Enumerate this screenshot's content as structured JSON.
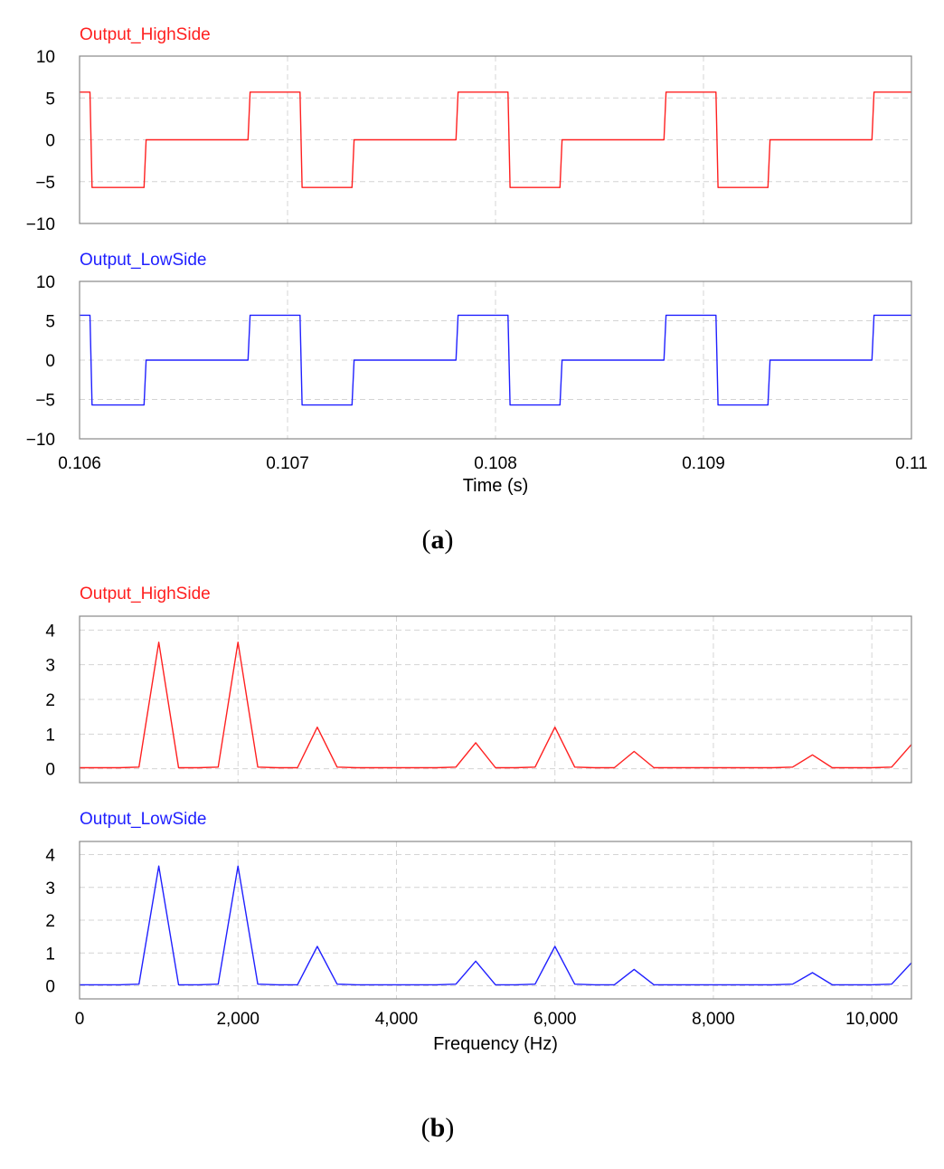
{
  "figure": {
    "caption_a": {
      "open": "(",
      "letter": "a",
      "close": ")"
    },
    "caption_b": {
      "open": "(",
      "letter": "b",
      "close": ")"
    }
  },
  "colors": {
    "high_side": "#ff2020",
    "low_side": "#2020ff",
    "grid": "#d4d4d4",
    "frame": "#888888"
  },
  "chart_data": [
    {
      "id": "time-high",
      "type": "line",
      "title": "Output_HighSide",
      "xlabel": "",
      "ylabel": "",
      "xlim": [
        0.106,
        0.11
      ],
      "ylim": [
        -10,
        10
      ],
      "yticks": [
        10,
        5,
        0,
        -5,
        -10
      ],
      "ytick_labels": [
        "10",
        "5",
        "0",
        "−5",
        "−10"
      ],
      "xticks": [
        0.106,
        0.107,
        0.108,
        0.109,
        0.11
      ],
      "xtick_labels": [],
      "grid": true,
      "series": [
        {
          "name": "Output_HighSide",
          "x": [
            0.106,
            0.10605,
            0.10606,
            0.10631,
            0.10632,
            0.10681,
            0.10682,
            0.10706,
            0.10707,
            0.10731,
            0.10732,
            0.10781,
            0.10782,
            0.10806,
            0.10807,
            0.10831,
            0.10832,
            0.10881,
            0.10882,
            0.10906,
            0.10907,
            0.10931,
            0.10932,
            0.10981,
            0.10982,
            0.11
          ],
          "y": [
            5.7,
            5.7,
            -5.7,
            -5.7,
            0,
            0,
            5.7,
            5.7,
            -5.7,
            -5.7,
            0,
            0,
            5.7,
            5.7,
            -5.7,
            -5.7,
            0,
            0,
            5.7,
            5.7,
            -5.7,
            -5.7,
            0,
            0,
            5.7,
            5.7
          ]
        }
      ]
    },
    {
      "id": "time-low",
      "type": "line",
      "title": "Output_LowSide",
      "xlabel": "Time (s)",
      "ylabel": "",
      "xlim": [
        0.106,
        0.11
      ],
      "ylim": [
        -10,
        10
      ],
      "yticks": [
        10,
        5,
        0,
        -5,
        -10
      ],
      "ytick_labels": [
        "10",
        "5",
        "0",
        "−5",
        "−10"
      ],
      "xticks": [
        0.106,
        0.107,
        0.108,
        0.109,
        0.11
      ],
      "xtick_labels": [
        "0.106",
        "0.107",
        "0.108",
        "0.109",
        "0.11"
      ],
      "grid": true,
      "series": [
        {
          "name": "Output_LowSide",
          "x": [
            0.106,
            0.10605,
            0.10606,
            0.10631,
            0.10632,
            0.10681,
            0.10682,
            0.10706,
            0.10707,
            0.10731,
            0.10732,
            0.10781,
            0.10782,
            0.10806,
            0.10807,
            0.10831,
            0.10832,
            0.10881,
            0.10882,
            0.10906,
            0.10907,
            0.10931,
            0.10932,
            0.10981,
            0.10982,
            0.11
          ],
          "y": [
            5.7,
            5.7,
            -5.7,
            -5.7,
            0,
            0,
            5.7,
            5.7,
            -5.7,
            -5.7,
            0,
            0,
            5.7,
            5.7,
            -5.7,
            -5.7,
            0,
            0,
            5.7,
            5.7,
            -5.7,
            -5.7,
            0,
            0,
            5.7,
            5.7
          ]
        }
      ]
    },
    {
      "id": "freq-high",
      "type": "line",
      "title": "Output_HighSide",
      "xlabel": "",
      "ylabel": "",
      "xlim": [
        0,
        10500
      ],
      "ylim": [
        -0.4,
        4.4
      ],
      "yticks": [
        4,
        3,
        2,
        1,
        0
      ],
      "ytick_labels": [
        "4",
        "3",
        "2",
        "1",
        "0"
      ],
      "xticks": [
        0,
        2000,
        4000,
        6000,
        8000,
        10000
      ],
      "xtick_labels": [],
      "grid": true,
      "series": [
        {
          "name": "Output_HighSide",
          "x": [
            0,
            250,
            500,
            750,
            1000,
            1250,
            1500,
            1750,
            2000,
            2250,
            2500,
            2750,
            3000,
            3250,
            3500,
            3750,
            4000,
            4250,
            4500,
            4750,
            5000,
            5250,
            5500,
            5750,
            6000,
            6250,
            6500,
            6750,
            7000,
            7250,
            7500,
            7750,
            8000,
            8250,
            8500,
            8750,
            9000,
            9250,
            9500,
            9750,
            10000,
            10250,
            10500
          ],
          "y": [
            0.03,
            0.03,
            0.03,
            0.05,
            3.65,
            0.03,
            0.03,
            0.05,
            3.65,
            0.05,
            0.03,
            0.03,
            1.2,
            0.05,
            0.03,
            0.03,
            0.03,
            0.03,
            0.03,
            0.05,
            0.75,
            0.03,
            0.03,
            0.05,
            1.2,
            0.05,
            0.03,
            0.03,
            0.5,
            0.03,
            0.03,
            0.03,
            0.03,
            0.03,
            0.03,
            0.03,
            0.05,
            0.4,
            0.03,
            0.03,
            0.03,
            0.05,
            0.7
          ]
        }
      ]
    },
    {
      "id": "freq-low",
      "type": "line",
      "title": "Output_LowSide",
      "xlabel": "Frequency (Hz)",
      "ylabel": "",
      "xlim": [
        0,
        10500
      ],
      "ylim": [
        -0.4,
        4.4
      ],
      "yticks": [
        4,
        3,
        2,
        1,
        0
      ],
      "ytick_labels": [
        "4",
        "3",
        "2",
        "1",
        "0"
      ],
      "xticks": [
        0,
        2000,
        4000,
        6000,
        8000,
        10000
      ],
      "xtick_labels": [
        "0",
        "2,000",
        "4,000",
        "6,000",
        "8,000",
        "10,000"
      ],
      "grid": true,
      "series": [
        {
          "name": "Output_LowSide",
          "x": [
            0,
            250,
            500,
            750,
            1000,
            1250,
            1500,
            1750,
            2000,
            2250,
            2500,
            2750,
            3000,
            3250,
            3500,
            3750,
            4000,
            4250,
            4500,
            4750,
            5000,
            5250,
            5500,
            5750,
            6000,
            6250,
            6500,
            6750,
            7000,
            7250,
            7500,
            7750,
            8000,
            8250,
            8500,
            8750,
            9000,
            9250,
            9500,
            9750,
            10000,
            10250,
            10500
          ],
          "y": [
            0.03,
            0.03,
            0.03,
            0.05,
            3.65,
            0.03,
            0.03,
            0.05,
            3.65,
            0.05,
            0.03,
            0.03,
            1.2,
            0.05,
            0.03,
            0.03,
            0.03,
            0.03,
            0.03,
            0.05,
            0.75,
            0.03,
            0.03,
            0.05,
            1.2,
            0.05,
            0.03,
            0.03,
            0.5,
            0.03,
            0.03,
            0.03,
            0.03,
            0.03,
            0.03,
            0.03,
            0.05,
            0.4,
            0.03,
            0.03,
            0.03,
            0.05,
            0.7
          ]
        }
      ]
    }
  ]
}
